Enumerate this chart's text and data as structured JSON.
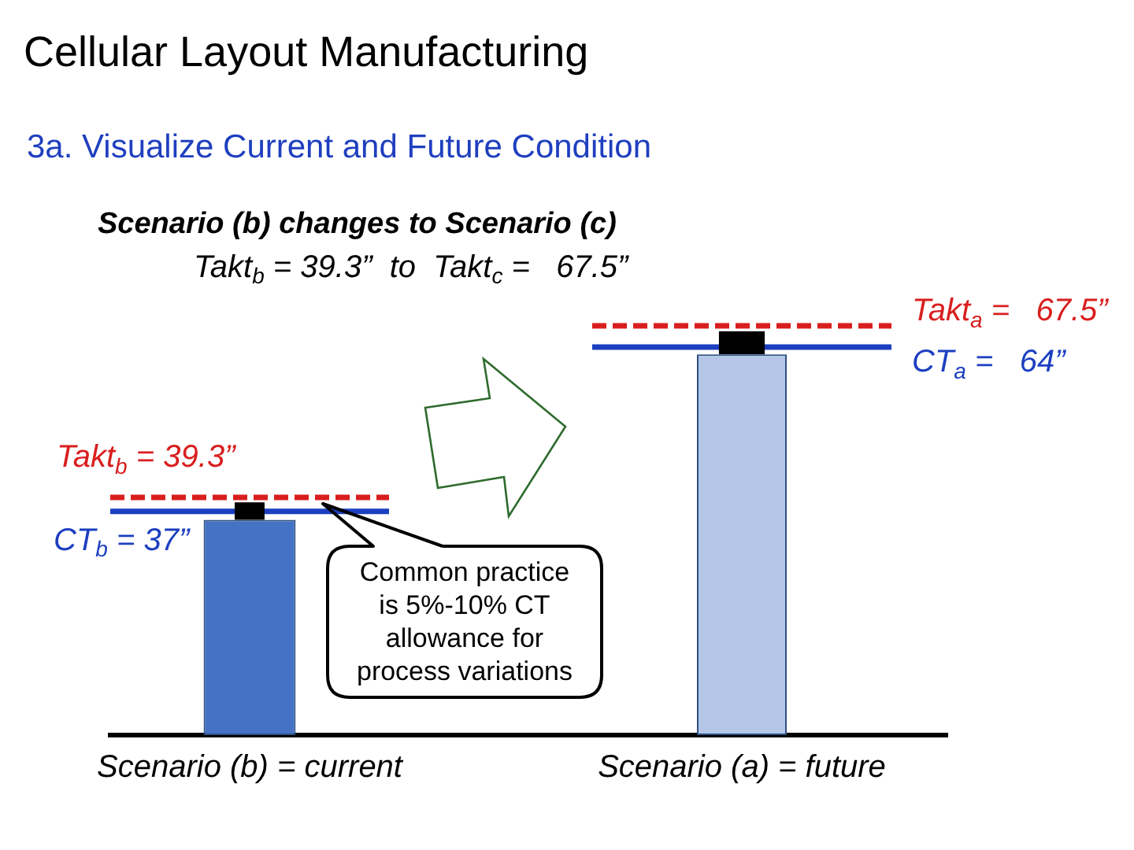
{
  "chart_data": [
    {
      "type": "bar",
      "title": "Cellular Layout Manufacturing",
      "subtitle": "3a. Visualize Current and Future Condition",
      "annotations": [
        "Scenario (b) changes to Scenario (c)",
        "Takt$_{b}$ = 39.3”  to  Takt$_{c}$ =   67.5”",
        "Common practice is 5%-10% CT allowance for process variations"
      ],
      "categories": [
        "Scenario (b) = current"
      ],
      "stacked": true,
      "ylim": [
        0,
        39.3
      ],
      "tick_labels": "x",
      "series": [
        {
          "color": "#4472c4",
          "values": [
            35.6
          ]
        },
        {
          "color": "#000000",
          "values": [
            2.9
          ]
        }
      ],
      "ref_lines": [
        {
          "axis": "y",
          "value": 39.3,
          "label": "Takt$_{b}$ = 39.3”",
          "color": "#d91e1e",
          "line_style": "dashed"
        },
        {
          "axis": "y",
          "value": 37,
          "label": "CT$_{b}$ = 37”",
          "color": "#1c3fc0",
          "line_style": "solid"
        }
      ]
    },
    {
      "type": "bar",
      "categories": [
        "Scenario (a) = future"
      ],
      "stacked": true,
      "ylim": [
        0,
        67.5
      ],
      "tick_labels": "x",
      "series": [
        {
          "color": "#b4c7e7",
          "values": [
            62.8
          ]
        },
        {
          "color": "#000000",
          "values": [
            3.8
          ]
        }
      ],
      "ref_lines": [
        {
          "axis": "y",
          "value": 67.5,
          "label": "Takt$_{a}$ =   67.5”",
          "color": "#d91e1e",
          "line_style": "dashed"
        },
        {
          "axis": "y",
          "value": 64,
          "label": "CT$_{a}$ =   64”",
          "color": "#1c3fc0",
          "line_style": "solid"
        }
      ]
    }
  ]
}
